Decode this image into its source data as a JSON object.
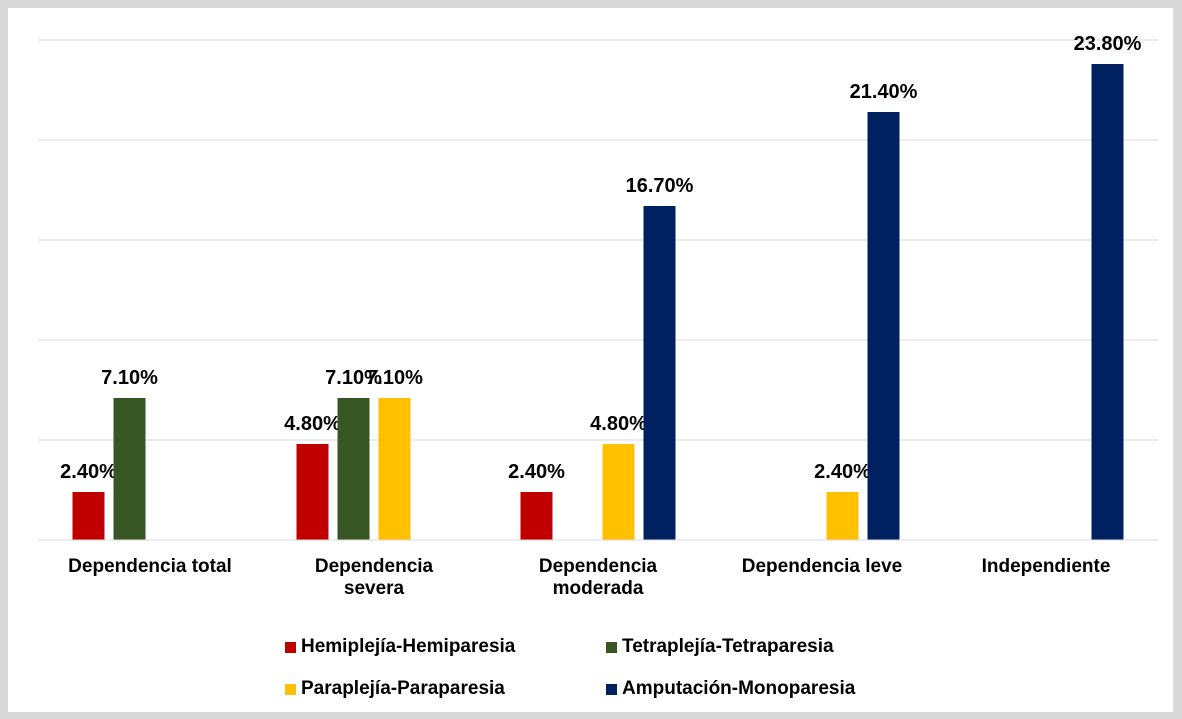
{
  "chart_data": {
    "type": "bar",
    "categories": [
      "Dependencia total",
      "Dependencia\nsevera",
      "Dependencia\nmoderada",
      "Dependencia leve",
      "Independiente"
    ],
    "series": [
      {
        "name": "Hemiplejía-Hemiparesia",
        "color": "#c00000",
        "values": [
          2.4,
          4.8,
          2.4,
          null,
          null
        ],
        "value_labels": [
          "2.40%",
          "4.80%",
          "2.40%",
          null,
          null
        ]
      },
      {
        "name": "Tetraplejía-Tetraparesia",
        "color": "#375623",
        "values": [
          7.1,
          7.1,
          null,
          null,
          null
        ],
        "value_labels": [
          "7.10%",
          "7.10%",
          null,
          null,
          null
        ]
      },
      {
        "name": "Paraplejía-Paraparesia",
        "color": "#ffc000",
        "values": [
          null,
          7.1,
          4.8,
          2.4,
          null
        ],
        "value_labels": [
          null,
          "7.10%",
          "4.80%",
          "2.40%",
          null
        ]
      },
      {
        "name": "Amputación-Monoparesia",
        "color": "#002060",
        "values": [
          null,
          null,
          16.7,
          21.4,
          23.8
        ],
        "value_labels": [
          null,
          null,
          "16.70%",
          "21.40%",
          "23.80%"
        ]
      }
    ],
    "ylim": [
      0,
      25
    ],
    "yticks": [
      0,
      5,
      10,
      15,
      20,
      25
    ],
    "grid": true
  }
}
